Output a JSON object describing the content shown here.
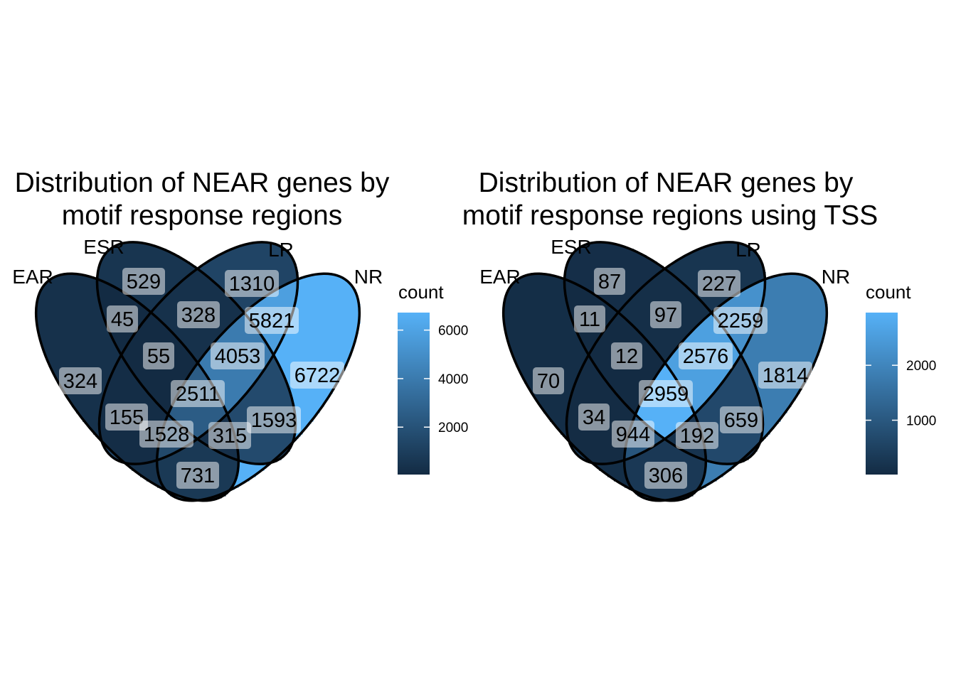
{
  "chart_data": [
    {
      "type": "venn",
      "title_lines": [
        "Distribution of NEAR genes by",
        "motif response regions"
      ],
      "sets": [
        "EAR",
        "ESR",
        "LR",
        "NR"
      ],
      "regions": [
        {
          "sets": [
            "ESR"
          ],
          "value": 529
        },
        {
          "sets": [
            "LR"
          ],
          "value": 1310
        },
        {
          "sets": [
            "EAR",
            "ESR"
          ],
          "value": 45
        },
        {
          "sets": [
            "ESR",
            "LR"
          ],
          "value": 328
        },
        {
          "sets": [
            "LR",
            "NR"
          ],
          "value": 5821
        },
        {
          "sets": [
            "EAR",
            "ESR",
            "LR"
          ],
          "value": 55
        },
        {
          "sets": [
            "ESR",
            "LR",
            "NR"
          ],
          "value": 4053
        },
        {
          "sets": [
            "EAR"
          ],
          "value": 324
        },
        {
          "sets": [
            "NR"
          ],
          "value": 6722
        },
        {
          "sets": [
            "EAR",
            "ESR",
            "LR",
            "NR"
          ],
          "value": 2511
        },
        {
          "sets": [
            "EAR",
            "LR"
          ],
          "value": 155
        },
        {
          "sets": [
            "ESR",
            "NR"
          ],
          "value": 1593
        },
        {
          "sets": [
            "EAR",
            "LR",
            "NR"
          ],
          "value": 1528
        },
        {
          "sets": [
            "EAR",
            "ESR",
            "NR"
          ],
          "value": 315
        },
        {
          "sets": [
            "EAR",
            "NR"
          ],
          "value": 731
        }
      ],
      "legend": {
        "title": "count",
        "ticks": [
          2000,
          4000,
          6000
        ],
        "min": 45,
        "max": 6722,
        "low_color": "#132B43",
        "high_color": "#56B1F7"
      }
    },
    {
      "type": "venn",
      "title_lines": [
        "Distribution of NEAR genes by",
        "motif response regions using TSS"
      ],
      "sets": [
        "EAR",
        "ESR",
        "LR",
        "NR"
      ],
      "regions": [
        {
          "sets": [
            "ESR"
          ],
          "value": 87
        },
        {
          "sets": [
            "LR"
          ],
          "value": 227
        },
        {
          "sets": [
            "EAR",
            "ESR"
          ],
          "value": 11
        },
        {
          "sets": [
            "ESR",
            "LR"
          ],
          "value": 97
        },
        {
          "sets": [
            "LR",
            "NR"
          ],
          "value": 2259
        },
        {
          "sets": [
            "EAR",
            "ESR",
            "LR"
          ],
          "value": 12
        },
        {
          "sets": [
            "ESR",
            "LR",
            "NR"
          ],
          "value": 2576
        },
        {
          "sets": [
            "EAR"
          ],
          "value": 70
        },
        {
          "sets": [
            "NR"
          ],
          "value": 1814
        },
        {
          "sets": [
            "EAR",
            "ESR",
            "LR",
            "NR"
          ],
          "value": 2959
        },
        {
          "sets": [
            "EAR",
            "LR"
          ],
          "value": 34
        },
        {
          "sets": [
            "ESR",
            "NR"
          ],
          "value": 659
        },
        {
          "sets": [
            "EAR",
            "LR",
            "NR"
          ],
          "value": 944
        },
        {
          "sets": [
            "EAR",
            "ESR",
            "NR"
          ],
          "value": 192
        },
        {
          "sets": [
            "EAR",
            "NR"
          ],
          "value": 306
        }
      ],
      "legend": {
        "title": "count",
        "ticks": [
          1000,
          2000
        ],
        "min": 11,
        "max": 2959,
        "low_color": "#132B43",
        "high_color": "#56B1F7"
      }
    }
  ]
}
